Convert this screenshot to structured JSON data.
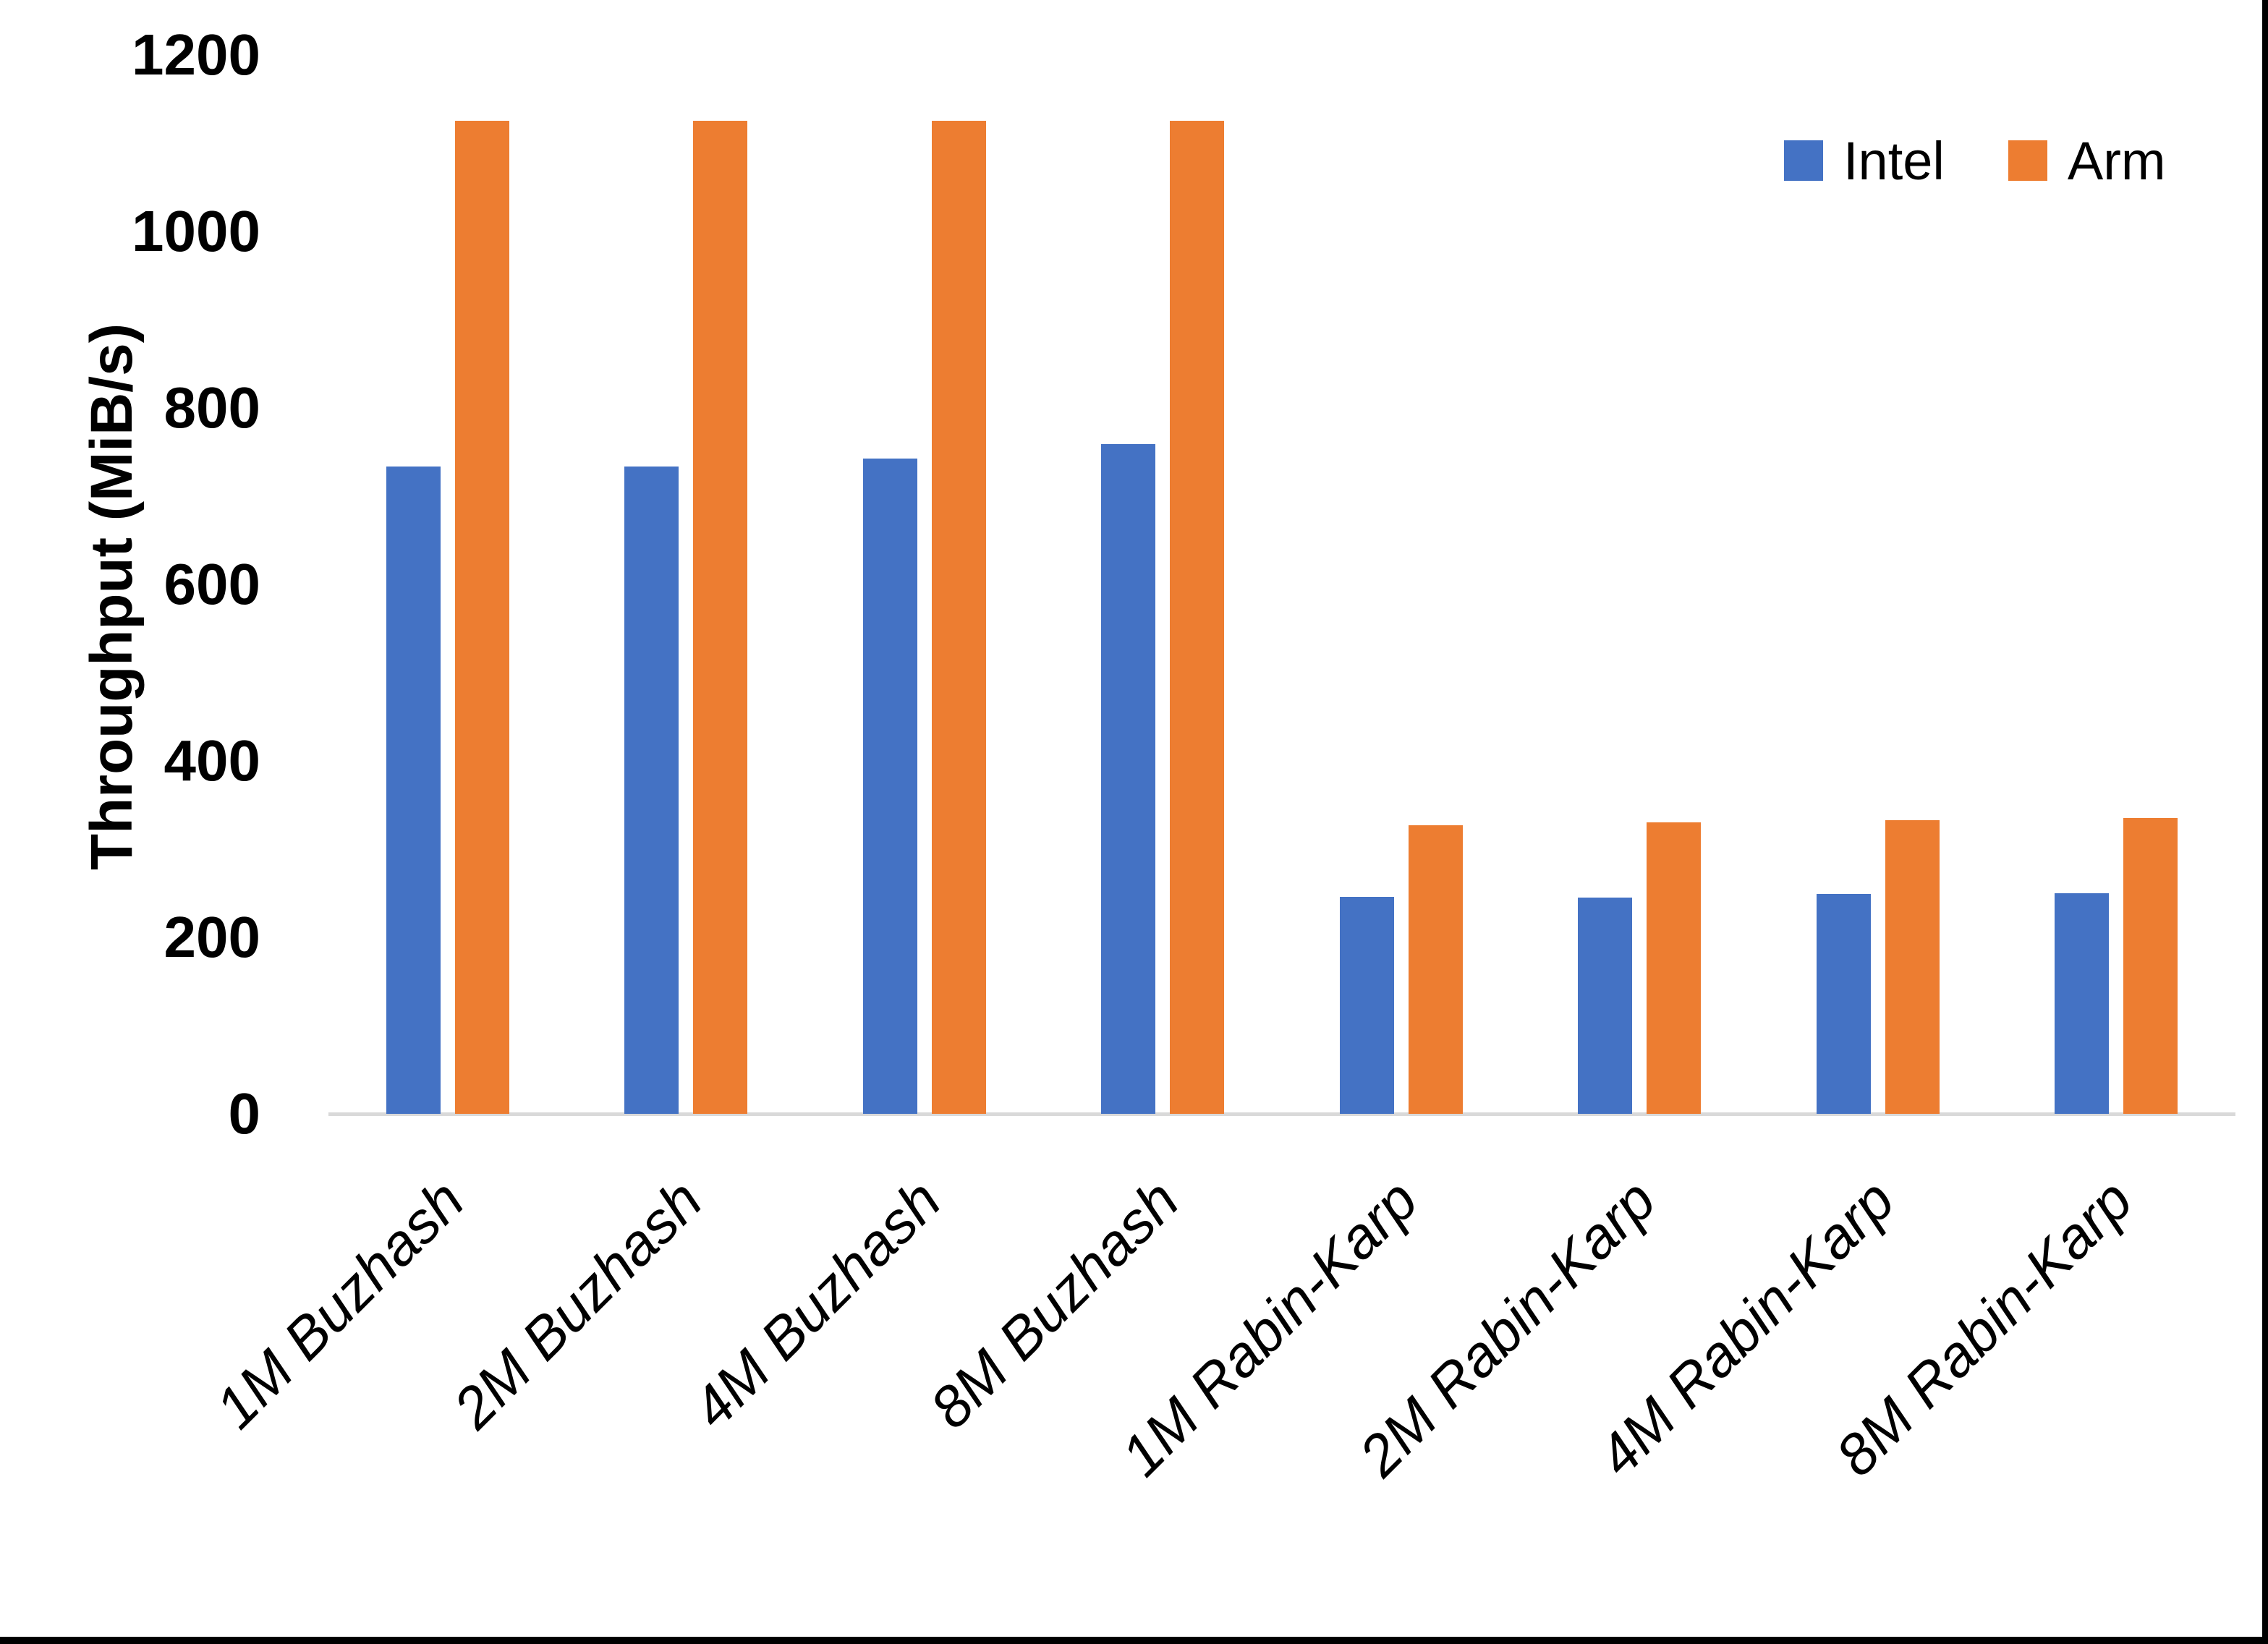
{
  "page": {
    "background": "#ffffff",
    "window_edge_color": "#000000"
  },
  "chart_data": {
    "type": "bar",
    "title": "",
    "xlabel": "",
    "ylabel": "Throughput (MiB/s)",
    "categories": [
      "1M Buzhash",
      "2M Buzhash",
      "4M Buzhash",
      "8M Buzhash",
      "1M Rabin-Karp",
      "2M Rabin-Karp",
      "4M Rabin-Karp",
      "8M Rabin-Karp"
    ],
    "series": [
      {
        "name": "Intel",
        "color": "#4472C4",
        "values": [
          734,
          734,
          743,
          759,
          246,
          245,
          249,
          250
        ]
      },
      {
        "name": "Arm",
        "color": "#ED7D31",
        "values": [
          1125,
          1125,
          1125,
          1125,
          327,
          330,
          333,
          335
        ]
      }
    ],
    "y_ticks": [
      0,
      200,
      400,
      600,
      800,
      1000,
      1200
    ],
    "ylim": [
      0,
      1200
    ],
    "grid": false,
    "legend_position": "top-right",
    "axis_line_color": "#d9d9d9",
    "text_color": "#000000"
  }
}
